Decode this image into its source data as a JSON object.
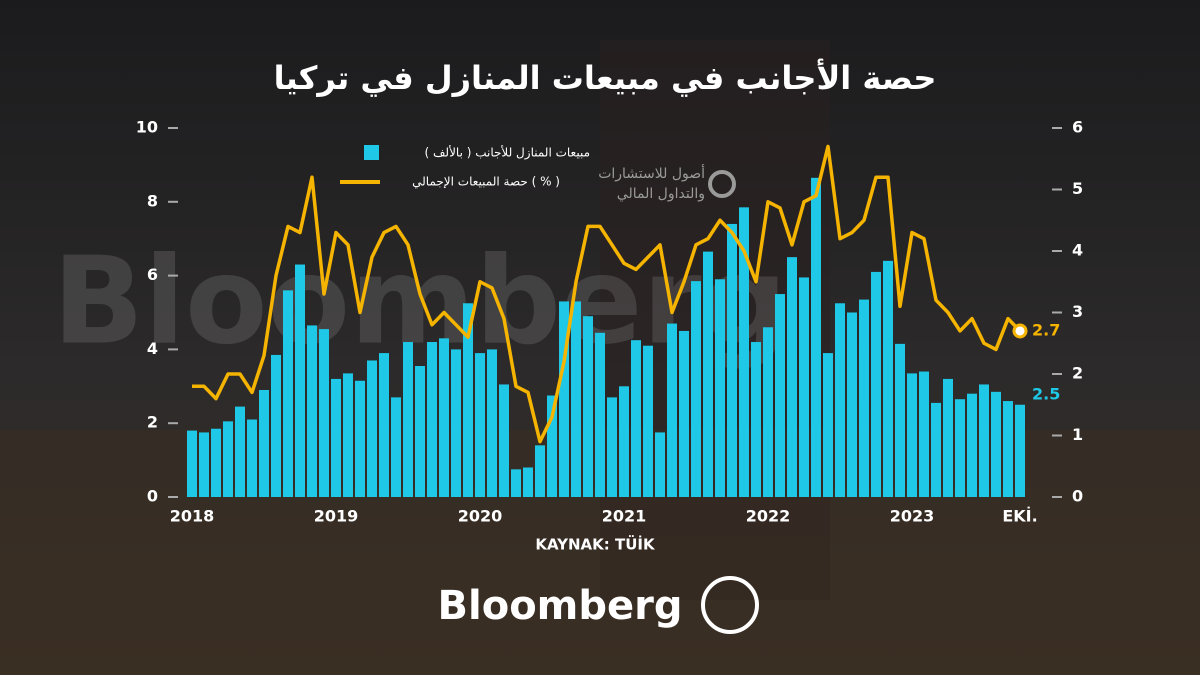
{
  "chart_data": {
    "type": "bar",
    "title": "حصة الأجانب في مبيعات المنازل في تركيا",
    "source": "KAYNAK: TÜİK",
    "brand": "Bloomberg",
    "watermark": "Bloomberg",
    "watermark_logo": [
      "أصول للاستشارات",
      "والتداول المالي"
    ],
    "categories": [
      "2018",
      null,
      null,
      null,
      null,
      null,
      null,
      null,
      null,
      null,
      null,
      null,
      "2019",
      null,
      null,
      null,
      null,
      null,
      null,
      null,
      null,
      null,
      null,
      null,
      "2020",
      null,
      null,
      null,
      null,
      null,
      null,
      null,
      null,
      null,
      null,
      null,
      "2021",
      null,
      null,
      null,
      null,
      null,
      null,
      null,
      null,
      null,
      null,
      null,
      "2022",
      null,
      null,
      null,
      null,
      null,
      null,
      null,
      null,
      null,
      null,
      null,
      "2023",
      null,
      null,
      null,
      null,
      null,
      null,
      null,
      null,
      "EKİ."
    ],
    "series": [
      {
        "name": "مبيعات المنازل للأجانب ( بالألف )",
        "type": "bar",
        "color": "#1ec8e6",
        "values": [
          1.8,
          1.75,
          1.85,
          2.05,
          2.45,
          2.1,
          2.9,
          3.85,
          5.6,
          6.3,
          4.65,
          4.55,
          3.2,
          3.35,
          3.15,
          3.7,
          3.9,
          2.7,
          4.2,
          3.55,
          4.2,
          4.3,
          4.0,
          5.25,
          3.9,
          4.0,
          3.05,
          0.75,
          0.8,
          1.4,
          2.75,
          5.3,
          5.3,
          4.9,
          4.45,
          2.7,
          3.0,
          4.25,
          4.1,
          1.75,
          4.7,
          4.5,
          5.85,
          6.65,
          5.9,
          7.4,
          7.85,
          4.2,
          4.6,
          5.5,
          6.5,
          5.95,
          8.65,
          3.9,
          5.25,
          5.0,
          5.35,
          6.1,
          6.4,
          4.15,
          3.35,
          3.4,
          2.55,
          3.2,
          2.65,
          2.8,
          3.05,
          2.85,
          2.6,
          2.5
        ]
      },
      {
        "name": "حصة المبيعات الإجمالي ( % )",
        "type": "line",
        "axis": "y2",
        "color": "#f5b400",
        "values": [
          1.8,
          1.8,
          1.6,
          2.0,
          2.0,
          1.7,
          2.3,
          3.6,
          4.4,
          4.3,
          5.2,
          3.3,
          4.3,
          4.1,
          3.0,
          3.9,
          4.3,
          4.4,
          4.1,
          3.3,
          2.8,
          3.0,
          2.8,
          2.6,
          3.5,
          3.4,
          2.9,
          1.8,
          1.7,
          0.9,
          1.3,
          2.2,
          3.5,
          4.4,
          4.4,
          4.1,
          3.8,
          3.7,
          3.9,
          4.1,
          3.0,
          3.5,
          4.1,
          4.2,
          4.5,
          4.3,
          4.0,
          3.5,
          4.8,
          4.7,
          4.1,
          4.8,
          4.9,
          5.7,
          4.2,
          4.3,
          4.5,
          5.2,
          5.2,
          3.1,
          4.3,
          4.2,
          3.2,
          3.0,
          2.7,
          2.9,
          2.5,
          2.4,
          2.9,
          2.7
        ]
      }
    ],
    "ylim": [
      0,
      10
    ],
    "yticks": [
      0,
      2,
      4,
      6,
      8,
      10
    ],
    "y2lim": [
      0,
      6
    ],
    "y2ticks": [
      0,
      1,
      2,
      3,
      4,
      5,
      6
    ]
  }
}
